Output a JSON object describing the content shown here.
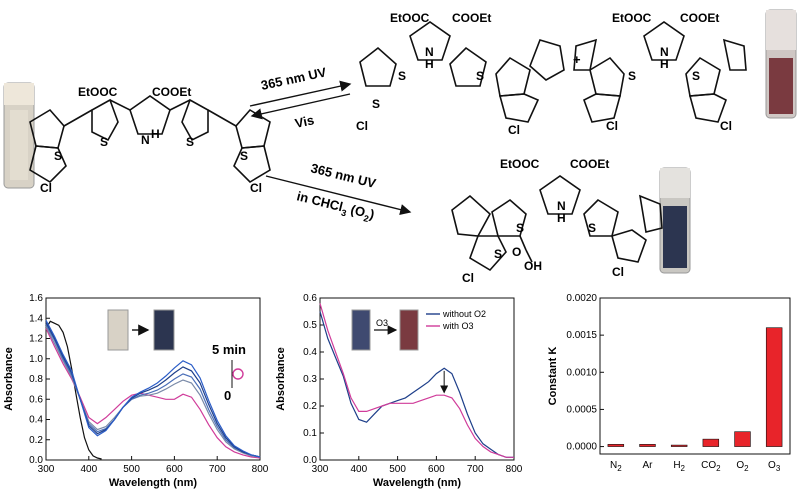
{
  "scheme": {
    "ester_left": "EtOOC",
    "ester_right": "COOEt",
    "atoms": {
      "S": "S",
      "N": "N",
      "H": "H",
      "Cl": "Cl",
      "O": "O",
      "OH": "OH"
    },
    "plus": "+",
    "arrow_top_label": "365 nm UV",
    "arrow_back_label": "Vis",
    "arrow_bottom_label_1": "365 nm UV",
    "arrow_bottom_label_2": "in CHCl",
    "arrow_bottom_label_sub": "3",
    "arrow_bottom_label_3": " (O",
    "arrow_bottom_label_sub2": "2",
    "arrow_bottom_label_4": ")",
    "colors": {
      "vial_clear": "#d8d2c6",
      "vial_red": "#7a3a40",
      "vial_blue": "#2c3550"
    }
  },
  "chart_data": [
    {
      "type": "line",
      "xlabel": "Wavelength (nm)",
      "ylabel": "Absorbance",
      "xlim": [
        300,
        800
      ],
      "ylim": [
        0,
        1.6
      ],
      "xticks": [
        "300",
        "400",
        "500",
        "600",
        "700",
        "800"
      ],
      "yticks": [
        "0.0",
        "0.2",
        "0.4",
        "0.6",
        "0.8",
        "1.0",
        "1.2",
        "1.4",
        "1.6"
      ],
      "annotation_top": "5 min",
      "annotation_bottom": "0",
      "series": [
        {
          "color": "#111111",
          "x": [
            300,
            310,
            320,
            330,
            340,
            350,
            360,
            370,
            380,
            390,
            400,
            410,
            420,
            430
          ],
          "y": [
            1.3,
            1.37,
            1.35,
            1.33,
            1.26,
            1.12,
            0.9,
            0.65,
            0.42,
            0.22,
            0.1,
            0.04,
            0.02,
            0.01
          ]
        },
        {
          "color": "#d03c9a",
          "x": [
            300,
            320,
            340,
            360,
            380,
            400,
            420,
            440,
            460,
            480,
            500,
            520,
            540,
            560,
            580,
            600,
            620,
            640,
            660,
            680,
            700,
            720,
            740,
            760,
            780,
            800
          ],
          "y": [
            1.3,
            1.12,
            0.95,
            0.8,
            0.62,
            0.42,
            0.36,
            0.42,
            0.5,
            0.58,
            0.64,
            0.66,
            0.64,
            0.62,
            0.6,
            0.6,
            0.65,
            0.62,
            0.5,
            0.35,
            0.22,
            0.13,
            0.08,
            0.05,
            0.03,
            0.02
          ]
        },
        {
          "color": "#7a8aa8",
          "x": [
            300,
            320,
            340,
            360,
            380,
            400,
            420,
            440,
            460,
            480,
            500,
            520,
            540,
            560,
            580,
            600,
            620,
            640,
            660,
            680,
            700,
            720,
            740,
            760,
            780,
            800
          ],
          "y": [
            1.32,
            1.15,
            0.98,
            0.82,
            0.6,
            0.38,
            0.3,
            0.33,
            0.42,
            0.52,
            0.6,
            0.63,
            0.64,
            0.66,
            0.7,
            0.75,
            0.79,
            0.76,
            0.64,
            0.46,
            0.3,
            0.18,
            0.11,
            0.07,
            0.04,
            0.03
          ]
        },
        {
          "color": "#4b6fb8",
          "x": [
            300,
            320,
            340,
            360,
            380,
            400,
            420,
            440,
            460,
            480,
            500,
            520,
            540,
            560,
            580,
            600,
            620,
            640,
            660,
            680,
            700,
            720,
            740,
            760,
            780,
            800
          ],
          "y": [
            1.34,
            1.18,
            1.0,
            0.84,
            0.6,
            0.36,
            0.28,
            0.31,
            0.4,
            0.52,
            0.6,
            0.64,
            0.66,
            0.69,
            0.74,
            0.8,
            0.85,
            0.82,
            0.7,
            0.5,
            0.33,
            0.2,
            0.12,
            0.08,
            0.05,
            0.03
          ]
        },
        {
          "color": "#1e3f8a",
          "x": [
            300,
            320,
            340,
            360,
            380,
            400,
            420,
            440,
            460,
            480,
            500,
            520,
            540,
            560,
            580,
            600,
            620,
            640,
            660,
            680,
            700,
            720,
            740,
            760,
            780,
            800
          ],
          "y": [
            1.36,
            1.2,
            1.02,
            0.86,
            0.6,
            0.34,
            0.26,
            0.3,
            0.4,
            0.52,
            0.61,
            0.66,
            0.69,
            0.73,
            0.79,
            0.86,
            0.92,
            0.88,
            0.76,
            0.55,
            0.36,
            0.22,
            0.13,
            0.08,
            0.05,
            0.03
          ]
        },
        {
          "color": "#2a5cc7",
          "x": [
            300,
            320,
            340,
            360,
            380,
            400,
            420,
            440,
            460,
            480,
            500,
            520,
            540,
            560,
            580,
            600,
            620,
            640,
            660,
            680,
            700,
            720,
            740,
            760,
            780,
            800
          ],
          "y": [
            1.38,
            1.22,
            1.04,
            0.88,
            0.6,
            0.32,
            0.24,
            0.29,
            0.4,
            0.52,
            0.62,
            0.67,
            0.71,
            0.76,
            0.83,
            0.91,
            0.98,
            0.94,
            0.81,
            0.59,
            0.39,
            0.24,
            0.14,
            0.09,
            0.05,
            0.03
          ]
        }
      ]
    },
    {
      "type": "line",
      "xlabel": "Wavelength (nm)",
      "ylabel": "Absorbance",
      "xlim": [
        300,
        800
      ],
      "ylim": [
        0,
        0.6
      ],
      "xticks": [
        "300",
        "400",
        "500",
        "600",
        "700",
        "800"
      ],
      "yticks": [
        "0.0",
        "0.1",
        "0.2",
        "0.3",
        "0.4",
        "0.5",
        "0.6"
      ],
      "inset_label": "O",
      "inset_label_sub": "3",
      "series": [
        {
          "name": "without O",
          "name_sub": "2",
          "color": "#1e3f8a",
          "x": [
            300,
            320,
            340,
            360,
            380,
            400,
            420,
            440,
            460,
            480,
            500,
            520,
            540,
            560,
            580,
            600,
            620,
            640,
            660,
            680,
            700,
            720,
            740,
            760,
            780,
            800
          ],
          "y": [
            0.55,
            0.45,
            0.38,
            0.31,
            0.21,
            0.15,
            0.14,
            0.17,
            0.2,
            0.21,
            0.22,
            0.23,
            0.25,
            0.27,
            0.29,
            0.32,
            0.34,
            0.32,
            0.25,
            0.17,
            0.1,
            0.06,
            0.04,
            0.02,
            0.01,
            0.01
          ]
        },
        {
          "name": "with O",
          "name_sub": "3",
          "color": "#d03c9a",
          "x": [
            300,
            320,
            340,
            360,
            380,
            400,
            420,
            440,
            460,
            480,
            500,
            520,
            540,
            560,
            580,
            600,
            620,
            640,
            660,
            680,
            700,
            720,
            740,
            760,
            780,
            800
          ],
          "y": [
            0.58,
            0.48,
            0.4,
            0.32,
            0.23,
            0.18,
            0.18,
            0.19,
            0.2,
            0.21,
            0.21,
            0.21,
            0.21,
            0.22,
            0.23,
            0.24,
            0.24,
            0.23,
            0.19,
            0.13,
            0.08,
            0.05,
            0.03,
            0.02,
            0.01,
            0.01
          ]
        }
      ]
    },
    {
      "type": "bar",
      "ylabel": "Constant K",
      "ylim": [
        -0.0001,
        0.002
      ],
      "yticks": [
        "0.0000",
        "0.0005",
        "0.0010",
        "0.0015",
        "0.0020"
      ],
      "categories": [
        {
          "base": "N",
          "sub": "2"
        },
        {
          "base": "Ar",
          "sub": ""
        },
        {
          "base": "H",
          "sub": "2"
        },
        {
          "base": "CO",
          "sub": "2"
        },
        {
          "base": "O",
          "sub": "2"
        },
        {
          "base": "O",
          "sub": "3"
        }
      ],
      "values": [
        3e-05,
        3e-05,
        2e-05,
        0.0001,
        0.0002,
        0.0016
      ],
      "color": "#e8242a"
    }
  ]
}
